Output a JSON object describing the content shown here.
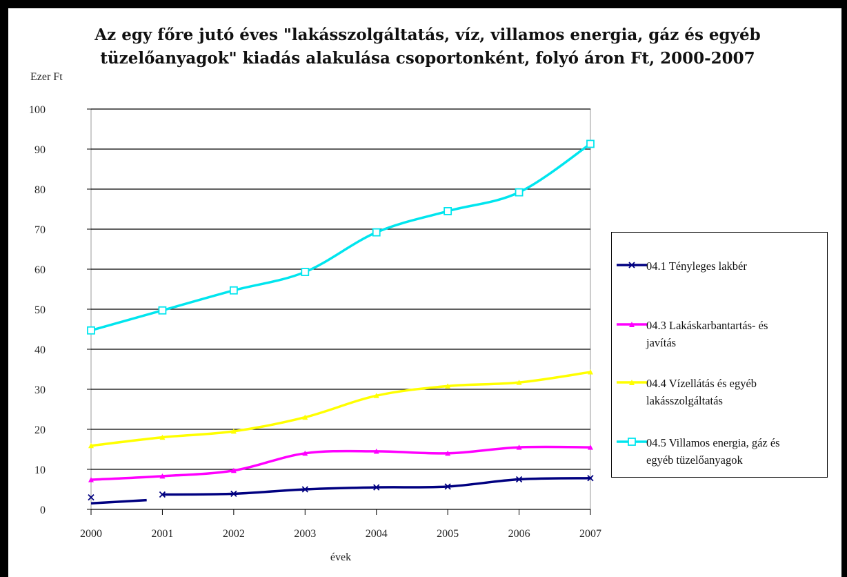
{
  "chart_data": {
    "type": "line",
    "title_lines": [
      "Az egy főre jutó éves \"lakásszolgáltatás, víz, villamos energia, gáz és egyéb",
      "tüzelőanyagok\" kiadás alakulása csoportonként, folyó áron Ft, 2000-2007"
    ],
    "ylabel": "Ezer  Ft",
    "xlabel": "évek",
    "categories": [
      "2000",
      "2001",
      "2002",
      "2003",
      "2004",
      "2005",
      "2006",
      "2007"
    ],
    "ylim": [
      0,
      100
    ],
    "yticks": [
      0,
      10,
      20,
      30,
      40,
      50,
      60,
      70,
      80,
      90,
      100
    ],
    "grid": "horizontal",
    "legend_position": "right",
    "series": [
      {
        "name": "04.1 Tényleges lakbér",
        "color": "#000080",
        "marker": "x",
        "values": [
          1.5,
          3.7,
          3.9,
          5.0,
          5.5,
          5.7,
          7.5,
          7.8
        ]
      },
      {
        "name": "04.3 Lakáskarbantartás- és javítás",
        "color": "#ff00ff",
        "marker": "triangle",
        "values": [
          7.4,
          8.3,
          9.7,
          14.0,
          14.5,
          14.0,
          15.5,
          15.5
        ]
      },
      {
        "name": "04.4 Vízellátás és egyéb lakásszolgáltatás",
        "color": "#ffff00",
        "marker": "triangle",
        "values": [
          15.9,
          18.0,
          19.5,
          23.0,
          28.4,
          30.8,
          31.7,
          34.3
        ]
      },
      {
        "name": "04.5 Villamos energia, gáz és egyéb tüzelőanyagok",
        "color": "#00e5ee",
        "marker": "square",
        "values": [
          44.7,
          49.7,
          54.7,
          59.3,
          69.2,
          74.5,
          79.2,
          91.3
        ]
      }
    ],
    "legend": [
      {
        "line1": "04.1 Tényleges lakbér",
        "line2": ""
      },
      {
        "line1": "04.3 Lakáskarbantartás- és",
        "line2": "javítás"
      },
      {
        "line1": "04.4 Vízellátás és egyéb",
        "line2": "lakásszolgáltatás"
      },
      {
        "line1": "04.5 Villamos energia, gáz és",
        "line2": "egyéb tüzelőanyagok"
      }
    ]
  }
}
